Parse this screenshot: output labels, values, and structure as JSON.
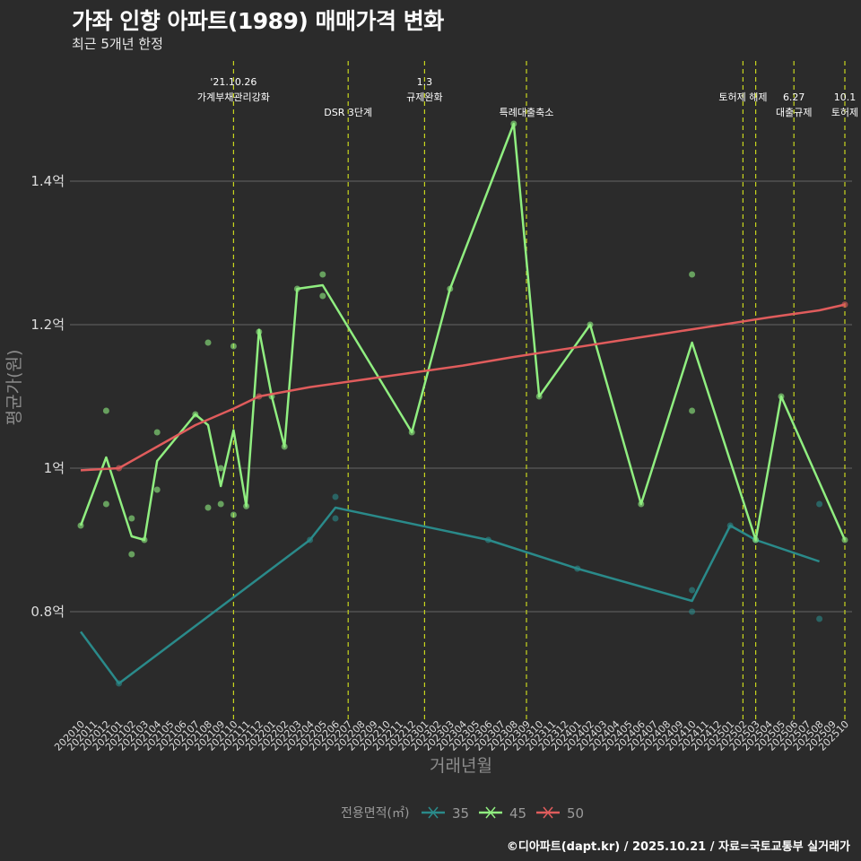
{
  "title": "가좌 인향 아파트(1989) 매매가격 변화",
  "subtitle": "최근 5개년 한정",
  "caption": "©디아파트(dapt.kr) / 2025.10.21 / 자료=국토교통부 실거래가",
  "colors": {
    "background": "#2b2b2b",
    "grid": "#666666",
    "event_line": "#c8d61e",
    "s35": "#2a8a8a",
    "s45": "#90ee80",
    "s50": "#e05c5c"
  },
  "chart_data": {
    "type": "line",
    "title": "가좌 인향 아파트(1989) 매매가격 변화",
    "xlabel": "거래년월",
    "ylabel": "평균가(원)",
    "ylim": [
      0.65,
      1.6
    ],
    "y_ticks": [
      0.8,
      1.0,
      1.2,
      1.4
    ],
    "y_tick_labels": [
      "0.8억",
      "1억",
      "1.2억",
      "1.4억"
    ],
    "categories": [
      "202010",
      "202011",
      "202012",
      "202101",
      "202102",
      "202103",
      "202104",
      "202105",
      "202106",
      "202107",
      "202108",
      "202109",
      "202110",
      "202111",
      "202112",
      "202201",
      "202202",
      "202203",
      "202204",
      "202205",
      "202206",
      "202207",
      "202208",
      "202209",
      "202210",
      "202211",
      "202212",
      "202301",
      "202302",
      "202303",
      "202304",
      "202305",
      "202306",
      "202307",
      "202308",
      "202309",
      "202310",
      "202311",
      "202312",
      "202401",
      "202402",
      "202403",
      "202404",
      "202405",
      "202406",
      "202407",
      "202408",
      "202409",
      "202410",
      "202411",
      "202412",
      "202501",
      "202502",
      "202503",
      "202504",
      "202505",
      "202506",
      "202507",
      "202508",
      "202509",
      "202510"
    ],
    "legend_title": "전용면적(㎡)",
    "series": [
      {
        "name": "35",
        "color": "#2a8a8a",
        "line": [
          [
            0,
            0.772
          ],
          [
            3,
            0.7
          ],
          [
            18,
            0.9
          ],
          [
            20,
            0.945
          ],
          [
            32,
            0.9
          ],
          [
            39,
            0.86
          ],
          [
            48,
            0.815
          ],
          [
            51,
            0.92
          ],
          [
            53,
            0.9
          ],
          [
            58,
            0.87
          ]
        ],
        "points": [
          [
            3,
            0.7
          ],
          [
            18,
            0.9
          ],
          [
            20,
            0.96
          ],
          [
            20,
            0.93
          ],
          [
            32,
            0.9
          ],
          [
            39,
            0.86
          ],
          [
            48,
            0.83
          ],
          [
            48,
            0.8
          ],
          [
            51,
            0.92
          ],
          [
            53,
            0.9
          ],
          [
            58,
            0.95
          ],
          [
            58,
            0.79
          ]
        ]
      },
      {
        "name": "45",
        "color": "#90ee80",
        "line": [
          [
            0,
            0.92
          ],
          [
            2,
            1.015
          ],
          [
            4,
            0.905
          ],
          [
            5,
            0.9
          ],
          [
            6,
            1.01
          ],
          [
            9,
            1.075
          ],
          [
            10,
            1.06
          ],
          [
            11,
            0.975
          ],
          [
            12,
            1.053
          ],
          [
            13,
            0.947
          ],
          [
            14,
            1.193
          ],
          [
            15,
            1.1
          ],
          [
            16,
            1.03
          ],
          [
            17,
            1.25
          ],
          [
            19,
            1.255
          ],
          [
            26,
            1.05
          ],
          [
            29,
            1.25
          ],
          [
            34,
            1.48
          ],
          [
            36,
            1.1
          ],
          [
            40,
            1.2
          ],
          [
            44,
            0.95
          ],
          [
            48,
            1.175
          ],
          [
            53,
            0.9
          ],
          [
            55,
            1.1
          ],
          [
            60,
            0.9
          ]
        ],
        "points": [
          [
            0,
            0.92
          ],
          [
            2,
            1.08
          ],
          [
            2,
            0.95
          ],
          [
            4,
            0.93
          ],
          [
            4,
            0.88
          ],
          [
            5,
            0.9
          ],
          [
            6,
            1.05
          ],
          [
            6,
            0.97
          ],
          [
            9,
            1.075
          ],
          [
            10,
            1.175
          ],
          [
            10,
            0.945
          ],
          [
            11,
            1.0
          ],
          [
            11,
            0.95
          ],
          [
            12,
            1.17
          ],
          [
            12,
            0.935
          ],
          [
            13,
            0.947
          ],
          [
            14,
            1.19
          ],
          [
            15,
            1.1
          ],
          [
            16,
            1.03
          ],
          [
            17,
            1.25
          ],
          [
            19,
            1.27
          ],
          [
            19,
            1.24
          ],
          [
            26,
            1.05
          ],
          [
            29,
            1.25
          ],
          [
            34,
            1.48
          ],
          [
            36,
            1.1
          ],
          [
            40,
            1.2
          ],
          [
            44,
            0.95
          ],
          [
            48,
            1.27
          ],
          [
            48,
            1.08
          ],
          [
            53,
            0.9
          ],
          [
            55,
            1.1
          ],
          [
            60,
            0.9
          ]
        ]
      },
      {
        "name": "50",
        "color": "#e05c5c",
        "line": [
          [
            0,
            0.997
          ],
          [
            3,
            1.0
          ],
          [
            6,
            1.03
          ],
          [
            9,
            1.06
          ],
          [
            12,
            1.083
          ],
          [
            14,
            1.1
          ],
          [
            18,
            1.113
          ],
          [
            22,
            1.123
          ],
          [
            26,
            1.133
          ],
          [
            30,
            1.143
          ],
          [
            34,
            1.155
          ],
          [
            38,
            1.166
          ],
          [
            42,
            1.177
          ],
          [
            46,
            1.188
          ],
          [
            50,
            1.199
          ],
          [
            54,
            1.21
          ],
          [
            58,
            1.22
          ],
          [
            60,
            1.228
          ]
        ],
        "points": [
          [
            3,
            1.0
          ],
          [
            14,
            1.1
          ],
          [
            60,
            1.228
          ]
        ]
      }
    ],
    "events": [
      {
        "index": 12,
        "label_lines": [
          "'21.10.26",
          "가계부채관리강화"
        ],
        "label_row": 1
      },
      {
        "index": 21,
        "label_lines": [
          "DSR 3단계"
        ],
        "label_row": 2
      },
      {
        "index": 27,
        "label_lines": [
          "1.3",
          "규제완화"
        ],
        "label_row": 1
      },
      {
        "index": 35,
        "label_lines": [
          "특례대출축소"
        ],
        "label_row": 2
      },
      {
        "index": 52,
        "label_lines": [
          "토허제 해제"
        ],
        "label_row": 1
      },
      {
        "index": 53,
        "label_lines": [],
        "label_row": 0
      },
      {
        "index": 56,
        "label_lines": [
          "6.27",
          "대출규제"
        ],
        "label_row": 2
      },
      {
        "index": 60,
        "label_lines": [
          "10.1",
          "토허제"
        ],
        "label_row": 2
      }
    ]
  }
}
